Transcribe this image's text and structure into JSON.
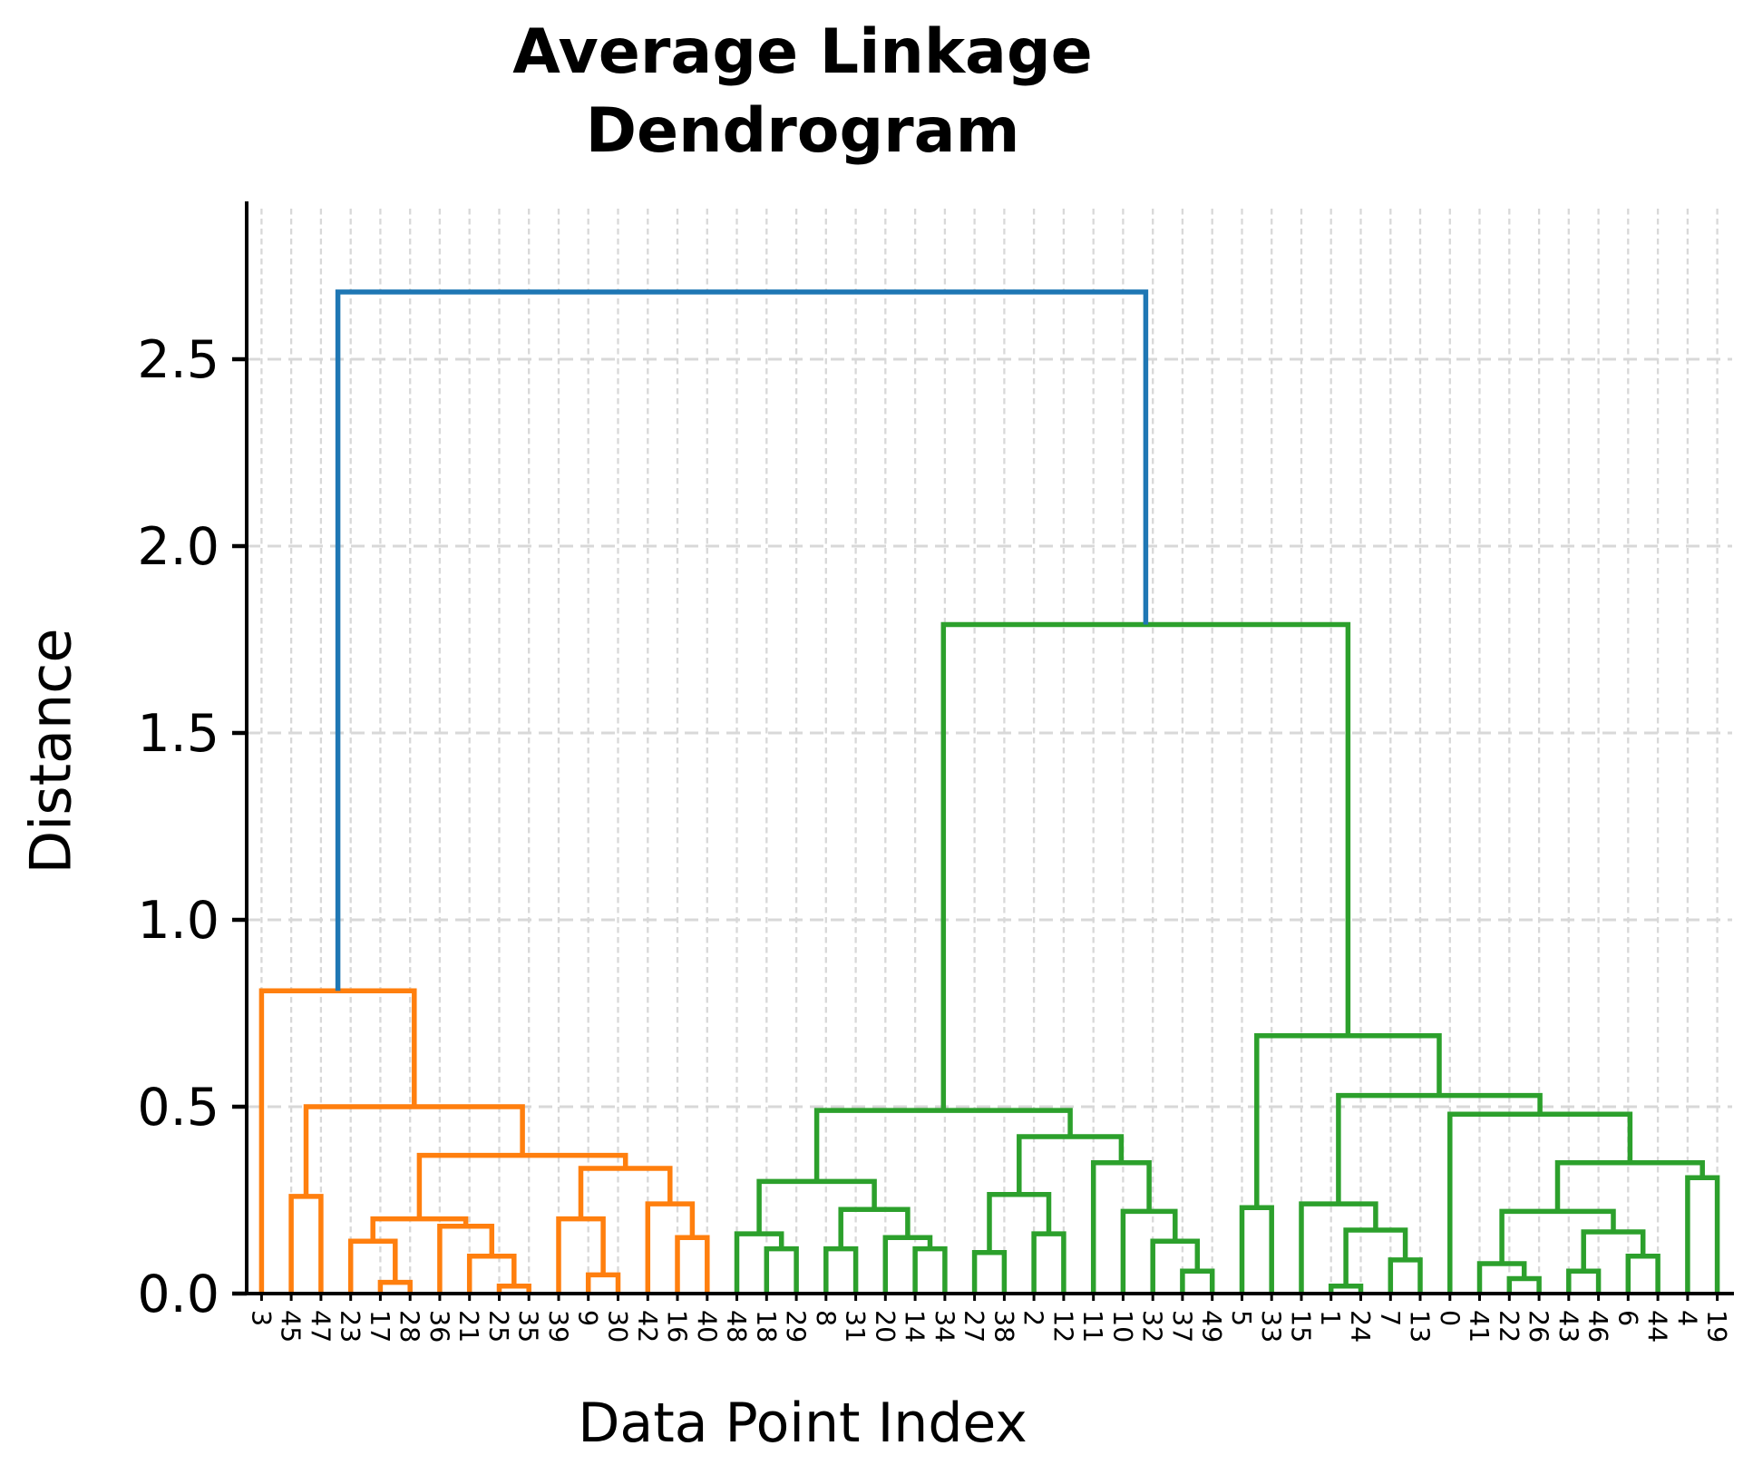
{
  "title": {
    "line1": "Average Linkage",
    "line2": "Dendrogram"
  },
  "axes": {
    "xlabel": "Data Point Index",
    "ylabel": "Distance",
    "ytick_labels": [
      "0.0",
      "0.5",
      "1.0",
      "1.5",
      "2.0",
      "2.5"
    ],
    "yticks": [
      0,
      0.5,
      1.0,
      1.5,
      2.0,
      2.5
    ]
  },
  "colors": {
    "b": "#1f77b4",
    "o": "#ff7f0e",
    "g": "#2ca02c",
    "grid_v": "#d8d8d8",
    "grid_h": "#d8d8d8",
    "axis": "#000000",
    "text": "#000000"
  },
  "chart_data": {
    "type": "dendrogram",
    "title": "Average Linkage Dendrogram",
    "xlabel": "Data Point Index",
    "ylabel": "Distance",
    "ylim": [
      0,
      2.903
    ],
    "grid": true,
    "legend": "none",
    "leaf_order": [
      "3",
      "45",
      "47",
      "23",
      "17",
      "28",
      "36",
      "21",
      "25",
      "35",
      "39",
      "9",
      "30",
      "42",
      "16",
      "40",
      "48",
      "18",
      "29",
      "8",
      "31",
      "20",
      "14",
      "34",
      "27",
      "38",
      "2",
      "12",
      "11",
      "10",
      "32",
      "37",
      "49",
      "5",
      "33",
      "15",
      "1",
      "24",
      "7",
      "13",
      "0",
      "41",
      "22",
      "26",
      "43",
      "46",
      "6",
      "44",
      "4",
      "19"
    ],
    "merges": [
      {
        "a": "L1",
        "b": "L2",
        "h": 0.26,
        "c": "o"
      },
      {
        "a": "L4",
        "b": "L5",
        "h": 0.03,
        "c": "o"
      },
      {
        "a": "L3",
        "b": "M1",
        "h": 0.14,
        "c": "o"
      },
      {
        "a": "L8",
        "b": "L9",
        "h": 0.02,
        "c": "o"
      },
      {
        "a": "L7",
        "b": "M3",
        "h": 0.1,
        "c": "o"
      },
      {
        "a": "L6",
        "b": "M4",
        "h": 0.18,
        "c": "o"
      },
      {
        "a": "M2",
        "b": "M5",
        "h": 0.2,
        "c": "o"
      },
      {
        "a": "L11",
        "b": "L12",
        "h": 0.05,
        "c": "o"
      },
      {
        "a": "L10",
        "b": "M7",
        "h": 0.2,
        "c": "o"
      },
      {
        "a": "L14",
        "b": "L15",
        "h": 0.15,
        "c": "o"
      },
      {
        "a": "L13",
        "b": "M9",
        "h": 0.24,
        "c": "o"
      },
      {
        "a": "M8",
        "b": "M10",
        "h": 0.335,
        "c": "o"
      },
      {
        "a": "M6",
        "b": "M11",
        "h": 0.37,
        "c": "o"
      },
      {
        "a": "M0",
        "b": "M12",
        "h": 0.5,
        "c": "o"
      },
      {
        "a": "L0",
        "b": "M13",
        "h": 0.81,
        "c": "o"
      },
      {
        "a": "L17",
        "b": "L18",
        "h": 0.12,
        "c": "g"
      },
      {
        "a": "L16",
        "b": "M15",
        "h": 0.16,
        "c": "g"
      },
      {
        "a": "L19",
        "b": "L20",
        "h": 0.12,
        "c": "g"
      },
      {
        "a": "L22",
        "b": "L23",
        "h": 0.12,
        "c": "g"
      },
      {
        "a": "L21",
        "b": "M18",
        "h": 0.15,
        "c": "g"
      },
      {
        "a": "M17",
        "b": "M19",
        "h": 0.225,
        "c": "g"
      },
      {
        "a": "M16",
        "b": "M20",
        "h": 0.3,
        "c": "g"
      },
      {
        "a": "L24",
        "b": "L25",
        "h": 0.11,
        "c": "g"
      },
      {
        "a": "L26",
        "b": "L27",
        "h": 0.16,
        "c": "g"
      },
      {
        "a": "M22",
        "b": "M23",
        "h": 0.265,
        "c": "g"
      },
      {
        "a": "L31",
        "b": "L32",
        "h": 0.06,
        "c": "g"
      },
      {
        "a": "L30",
        "b": "M25",
        "h": 0.14,
        "c": "g"
      },
      {
        "a": "L29",
        "b": "M26",
        "h": 0.22,
        "c": "g"
      },
      {
        "a": "L28",
        "b": "M27",
        "h": 0.35,
        "c": "g"
      },
      {
        "a": "M24",
        "b": "M28",
        "h": 0.42,
        "c": "g"
      },
      {
        "a": "M21",
        "b": "M29",
        "h": 0.49,
        "c": "g"
      },
      {
        "a": "L33",
        "b": "L34",
        "h": 0.23,
        "c": "g"
      },
      {
        "a": "L36",
        "b": "L37",
        "h": 0.02,
        "c": "g"
      },
      {
        "a": "L38",
        "b": "L39",
        "h": 0.09,
        "c": "g"
      },
      {
        "a": "M32",
        "b": "M33",
        "h": 0.17,
        "c": "g"
      },
      {
        "a": "L35",
        "b": "M34",
        "h": 0.24,
        "c": "g"
      },
      {
        "a": "L42",
        "b": "L43",
        "h": 0.04,
        "c": "g"
      },
      {
        "a": "L41",
        "b": "M36",
        "h": 0.08,
        "c": "g"
      },
      {
        "a": "L44",
        "b": "L45",
        "h": 0.06,
        "c": "g"
      },
      {
        "a": "L46",
        "b": "L47",
        "h": 0.1,
        "c": "g"
      },
      {
        "a": "M38",
        "b": "M39",
        "h": 0.165,
        "c": "g"
      },
      {
        "a": "M37",
        "b": "M40",
        "h": 0.22,
        "c": "g"
      },
      {
        "a": "L48",
        "b": "L49",
        "h": 0.31,
        "c": "g"
      },
      {
        "a": "M41",
        "b": "M42",
        "h": 0.35,
        "c": "g"
      },
      {
        "a": "L40",
        "b": "M43",
        "h": 0.48,
        "c": "g"
      },
      {
        "a": "M35",
        "b": "M44",
        "h": 0.53,
        "c": "g"
      },
      {
        "a": "M31",
        "b": "M45",
        "h": 0.69,
        "c": "g"
      },
      {
        "a": "M30",
        "b": "M46",
        "h": 1.79,
        "c": "g"
      },
      {
        "a": "M14",
        "b": "M47",
        "h": 2.68,
        "c": "b"
      }
    ]
  }
}
